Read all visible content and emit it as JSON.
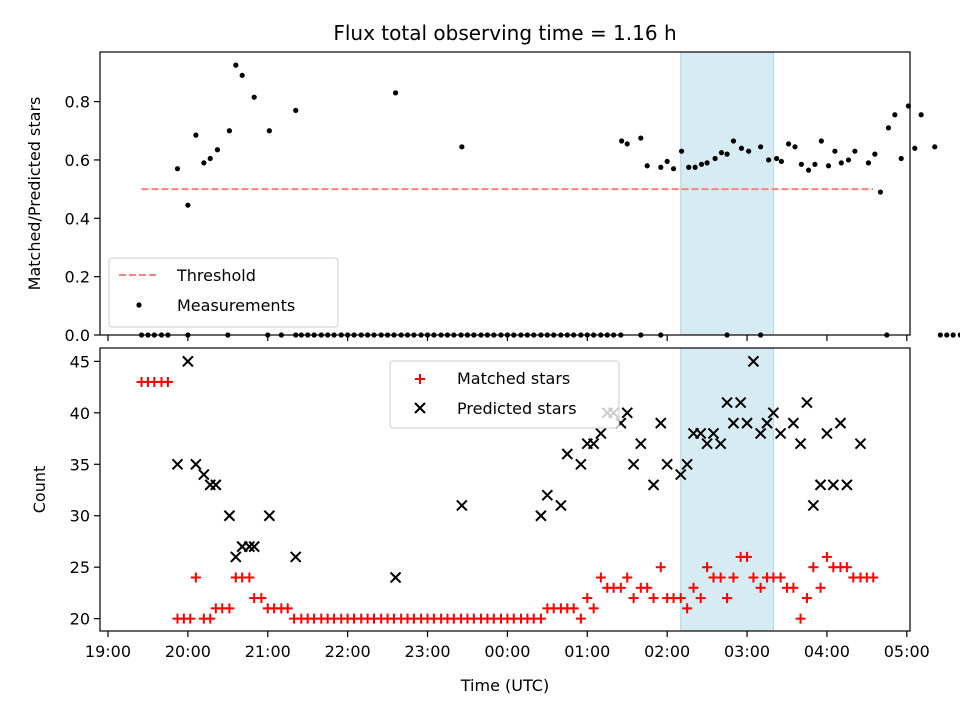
{
  "chart_data": {
    "type": "scatter",
    "title": "Flux total observing time = 1.16 h",
    "xlabel": "Time (UTC)",
    "x_ticks": [
      "19:00",
      "20:00",
      "21:00",
      "22:00",
      "23:00",
      "00:00",
      "01:00",
      "02:00",
      "03:00",
      "04:00",
      "05:00"
    ],
    "x_range_hours": [
      18.9,
      29.04
    ],
    "highlight_span_hours": [
      26.17,
      27.33
    ],
    "top_panel": {
      "ylabel": "Matched/Predicted stars",
      "ylim": [
        0,
        0.97
      ],
      "y_ticks": [
        "0.0",
        "0.2",
        "0.4",
        "0.6",
        "0.8"
      ],
      "legend": [
        "Threshold",
        "Measurements"
      ],
      "legend_location": "lower-left",
      "threshold": {
        "name": "Threshold",
        "value": 0.5,
        "x_range_hours": [
          19.42,
          28.58
        ],
        "color": "#ff7f7f"
      },
      "measurements_nonzero": [
        [
          19.87,
          0.57
        ],
        [
          20.0,
          0.445
        ],
        [
          20.1,
          0.685
        ],
        [
          20.2,
          0.59
        ],
        [
          20.28,
          0.605
        ],
        [
          20.37,
          0.635
        ],
        [
          20.52,
          0.7
        ],
        [
          20.6,
          0.925
        ],
        [
          20.68,
          0.89
        ],
        [
          20.83,
          0.815
        ],
        [
          21.02,
          0.7
        ],
        [
          21.35,
          0.77
        ],
        [
          22.6,
          0.83
        ],
        [
          23.43,
          0.645
        ],
        [
          25.43,
          0.665
        ],
        [
          25.5,
          0.655
        ],
        [
          25.67,
          0.675
        ],
        [
          25.75,
          0.58
        ],
        [
          25.92,
          0.575
        ],
        [
          26.0,
          0.595
        ],
        [
          26.08,
          0.57
        ],
        [
          26.18,
          0.63
        ],
        [
          26.27,
          0.575
        ],
        [
          26.35,
          0.575
        ],
        [
          26.43,
          0.585
        ],
        [
          26.5,
          0.59
        ],
        [
          26.6,
          0.605
        ],
        [
          26.68,
          0.625
        ],
        [
          26.75,
          0.62
        ],
        [
          26.83,
          0.665
        ],
        [
          26.93,
          0.64
        ],
        [
          27.02,
          0.63
        ],
        [
          27.17,
          0.645
        ],
        [
          27.27,
          0.6
        ],
        [
          27.37,
          0.605
        ],
        [
          27.43,
          0.595
        ],
        [
          27.52,
          0.655
        ],
        [
          27.6,
          0.645
        ],
        [
          27.68,
          0.585
        ],
        [
          27.77,
          0.565
        ],
        [
          27.85,
          0.585
        ],
        [
          27.93,
          0.665
        ],
        [
          28.02,
          0.58
        ],
        [
          28.1,
          0.63
        ],
        [
          28.18,
          0.59
        ],
        [
          28.27,
          0.6
        ],
        [
          28.35,
          0.63
        ],
        [
          28.52,
          0.59
        ],
        [
          28.6,
          0.62
        ],
        [
          28.67,
          0.49
        ],
        [
          28.77,
          0.71
        ],
        [
          28.85,
          0.755
        ],
        [
          28.93,
          0.605
        ],
        [
          29.02,
          0.785
        ],
        [
          29.1,
          0.64
        ],
        [
          29.18,
          0.755
        ],
        [
          29.35,
          0.645
        ]
      ],
      "measurements_zero_x": [
        19.42,
        19.5,
        19.58,
        19.67,
        19.75,
        20.0,
        20.5,
        21.0,
        21.17,
        21.35,
        21.42,
        21.5,
        21.58,
        21.67,
        21.75,
        21.83,
        21.92,
        22.0,
        22.08,
        22.17,
        22.25,
        22.33,
        22.42,
        22.5,
        22.58,
        22.67,
        22.75,
        22.83,
        22.92,
        23.0,
        23.08,
        23.17,
        23.25,
        23.33,
        23.42,
        23.5,
        23.58,
        23.67,
        23.75,
        23.83,
        23.92,
        24.0,
        24.08,
        24.17,
        24.25,
        24.33,
        24.42,
        24.5,
        24.58,
        24.67,
        24.75,
        24.83,
        24.92,
        25.0,
        25.08,
        25.17,
        25.25,
        25.33,
        25.42,
        25.67,
        25.92,
        26.75,
        27.17,
        28.75,
        29.42,
        29.5,
        29.58,
        29.67
      ]
    },
    "bottom_panel": {
      "ylabel": "Count",
      "ylim": [
        18.8,
        46.3
      ],
      "y_ticks": [
        "20",
        "25",
        "30",
        "35",
        "40",
        "45"
      ],
      "legend": [
        "Matched stars",
        "Predicted stars"
      ],
      "legend_location": "upper-center",
      "matched": [
        [
          19.42,
          43
        ],
        [
          19.5,
          43
        ],
        [
          19.58,
          43
        ],
        [
          19.67,
          43
        ],
        [
          19.75,
          43
        ],
        [
          19.87,
          20
        ],
        [
          19.95,
          20
        ],
        [
          20.03,
          20
        ],
        [
          20.1,
          24
        ],
        [
          20.2,
          20
        ],
        [
          20.28,
          20
        ],
        [
          20.35,
          21
        ],
        [
          20.43,
          21
        ],
        [
          20.52,
          21
        ],
        [
          20.6,
          24
        ],
        [
          20.68,
          24
        ],
        [
          20.77,
          24
        ],
        [
          20.83,
          22
        ],
        [
          20.92,
          22
        ],
        [
          21.0,
          21
        ],
        [
          21.08,
          21
        ],
        [
          21.17,
          21
        ],
        [
          21.25,
          21
        ],
        [
          21.33,
          20
        ],
        [
          21.42,
          20
        ],
        [
          21.5,
          20
        ],
        [
          21.58,
          20
        ],
        [
          21.67,
          20
        ],
        [
          21.75,
          20
        ],
        [
          21.83,
          20
        ],
        [
          21.92,
          20
        ],
        [
          22.0,
          20
        ],
        [
          22.08,
          20
        ],
        [
          22.17,
          20
        ],
        [
          22.25,
          20
        ],
        [
          22.33,
          20
        ],
        [
          22.42,
          20
        ],
        [
          22.5,
          20
        ],
        [
          22.58,
          20
        ],
        [
          22.67,
          20
        ],
        [
          22.75,
          20
        ],
        [
          22.83,
          20
        ],
        [
          22.92,
          20
        ],
        [
          23.0,
          20
        ],
        [
          23.08,
          20
        ],
        [
          23.17,
          20
        ],
        [
          23.25,
          20
        ],
        [
          23.33,
          20
        ],
        [
          23.42,
          20
        ],
        [
          23.5,
          20
        ],
        [
          23.58,
          20
        ],
        [
          23.67,
          20
        ],
        [
          23.75,
          20
        ],
        [
          23.83,
          20
        ],
        [
          23.92,
          20
        ],
        [
          24.0,
          20
        ],
        [
          24.08,
          20
        ],
        [
          24.17,
          20
        ],
        [
          24.25,
          20
        ],
        [
          24.33,
          20
        ],
        [
          24.42,
          20
        ],
        [
          24.5,
          21
        ],
        [
          24.58,
          21
        ],
        [
          24.67,
          21
        ],
        [
          24.75,
          21
        ],
        [
          24.83,
          21
        ],
        [
          24.92,
          20
        ],
        [
          25.0,
          22
        ],
        [
          25.08,
          21
        ],
        [
          25.17,
          24
        ],
        [
          25.25,
          23
        ],
        [
          25.33,
          23
        ],
        [
          25.42,
          23
        ],
        [
          25.5,
          24
        ],
        [
          25.58,
          22
        ],
        [
          25.67,
          23
        ],
        [
          25.75,
          23
        ],
        [
          25.83,
          22
        ],
        [
          25.92,
          25
        ],
        [
          26.0,
          22
        ],
        [
          26.08,
          22
        ],
        [
          26.17,
          22
        ],
        [
          26.25,
          21
        ],
        [
          26.33,
          23
        ],
        [
          26.42,
          22
        ],
        [
          26.5,
          25
        ],
        [
          26.58,
          24
        ],
        [
          26.67,
          24
        ],
        [
          26.75,
          22
        ],
        [
          26.83,
          24
        ],
        [
          26.92,
          26
        ],
        [
          27.0,
          26
        ],
        [
          27.08,
          24
        ],
        [
          27.17,
          23
        ],
        [
          27.25,
          24
        ],
        [
          27.33,
          24
        ],
        [
          27.42,
          24
        ],
        [
          27.5,
          23
        ],
        [
          27.58,
          23
        ],
        [
          27.67,
          20
        ],
        [
          27.75,
          22
        ],
        [
          27.83,
          25
        ],
        [
          27.92,
          23
        ],
        [
          28.0,
          26
        ],
        [
          28.08,
          25
        ],
        [
          28.17,
          25
        ],
        [
          28.25,
          25
        ],
        [
          28.33,
          24
        ],
        [
          28.42,
          24
        ],
        [
          28.5,
          24
        ],
        [
          28.58,
          24
        ]
      ],
      "predicted": [
        [
          19.87,
          35
        ],
        [
          20.0,
          45
        ],
        [
          20.1,
          35
        ],
        [
          20.2,
          34
        ],
        [
          20.28,
          33
        ],
        [
          20.35,
          33
        ],
        [
          20.52,
          30
        ],
        [
          20.6,
          26
        ],
        [
          20.68,
          27
        ],
        [
          20.77,
          27
        ],
        [
          20.83,
          27
        ],
        [
          21.02,
          30
        ],
        [
          21.35,
          26
        ],
        [
          22.6,
          24
        ],
        [
          23.43,
          31
        ],
        [
          24.42,
          30
        ],
        [
          24.5,
          32
        ],
        [
          24.67,
          31
        ],
        [
          24.75,
          36
        ],
        [
          24.92,
          35
        ],
        [
          25.0,
          37
        ],
        [
          25.08,
          37
        ],
        [
          25.17,
          38
        ],
        [
          25.25,
          40
        ],
        [
          25.33,
          40
        ],
        [
          25.42,
          39
        ],
        [
          25.5,
          40
        ],
        [
          25.58,
          35
        ],
        [
          25.67,
          37
        ],
        [
          25.83,
          33
        ],
        [
          25.92,
          39
        ],
        [
          26.0,
          35
        ],
        [
          26.17,
          34
        ],
        [
          26.25,
          35
        ],
        [
          26.33,
          38
        ],
        [
          26.42,
          38
        ],
        [
          26.5,
          37
        ],
        [
          26.58,
          38
        ],
        [
          26.67,
          37
        ],
        [
          26.75,
          41
        ],
        [
          26.83,
          39
        ],
        [
          26.92,
          41
        ],
        [
          27.0,
          39
        ],
        [
          27.08,
          45
        ],
        [
          27.17,
          38
        ],
        [
          27.25,
          39
        ],
        [
          27.33,
          40
        ],
        [
          27.42,
          38
        ],
        [
          27.58,
          39
        ],
        [
          27.67,
          37
        ],
        [
          27.75,
          41
        ],
        [
          27.83,
          31
        ],
        [
          27.92,
          33
        ],
        [
          28.0,
          38
        ],
        [
          28.08,
          33
        ],
        [
          28.17,
          39
        ],
        [
          28.25,
          33
        ],
        [
          28.42,
          37
        ]
      ]
    }
  }
}
